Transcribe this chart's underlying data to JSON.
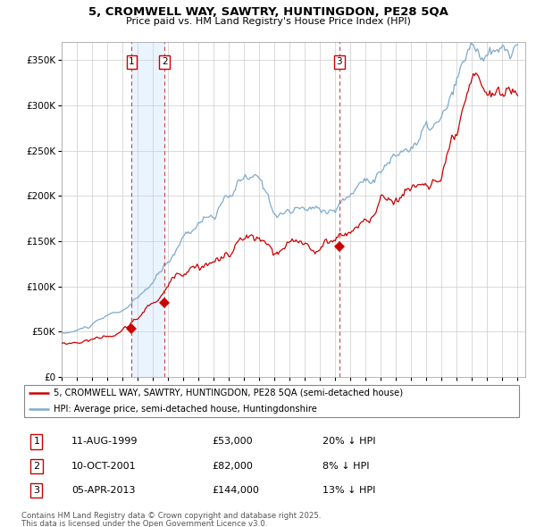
{
  "title": "5, CROMWELL WAY, SAWTRY, HUNTINGDON, PE28 5QA",
  "subtitle": "Price paid vs. HM Land Registry's House Price Index (HPI)",
  "red_label": "5, CROMWELL WAY, SAWTRY, HUNTINGDON, PE28 5QA (semi-detached house)",
  "blue_label": "HPI: Average price, semi-detached house, Huntingdonshire",
  "footer1": "Contains HM Land Registry data © Crown copyright and database right 2025.",
  "footer2": "This data is licensed under the Open Government Licence v3.0.",
  "transactions": [
    {
      "num": 1,
      "date": "11-AUG-1999",
      "price": 53000,
      "pct": "20% ↓ HPI",
      "x": 1999.61
    },
    {
      "num": 2,
      "date": "10-OCT-2001",
      "price": 82000,
      "pct": "8% ↓ HPI",
      "x": 2001.78
    },
    {
      "num": 3,
      "date": "05-APR-2013",
      "price": 144000,
      "pct": "13% ↓ HPI",
      "x": 2013.26
    }
  ],
  "ylim": [
    0,
    370000
  ],
  "yticks": [
    0,
    50000,
    100000,
    150000,
    200000,
    250000,
    300000,
    350000
  ],
  "ytick_labels": [
    "£0",
    "£50K",
    "£100K",
    "£150K",
    "£200K",
    "£250K",
    "£300K",
    "£350K"
  ],
  "red_color": "#cc0000",
  "blue_color": "#7faacc",
  "dot_color": "#cc0000",
  "vline_color": "#cc4444",
  "shade_color": "#ddeeff",
  "xlim": [
    1995.0,
    2025.5
  ],
  "xtick_years": [
    1995,
    1996,
    1997,
    1998,
    1999,
    2000,
    2001,
    2002,
    2003,
    2004,
    2005,
    2006,
    2007,
    2008,
    2009,
    2010,
    2011,
    2012,
    2013,
    2014,
    2015,
    2016,
    2017,
    2018,
    2019,
    2020,
    2021,
    2022,
    2023,
    2024,
    2025
  ]
}
